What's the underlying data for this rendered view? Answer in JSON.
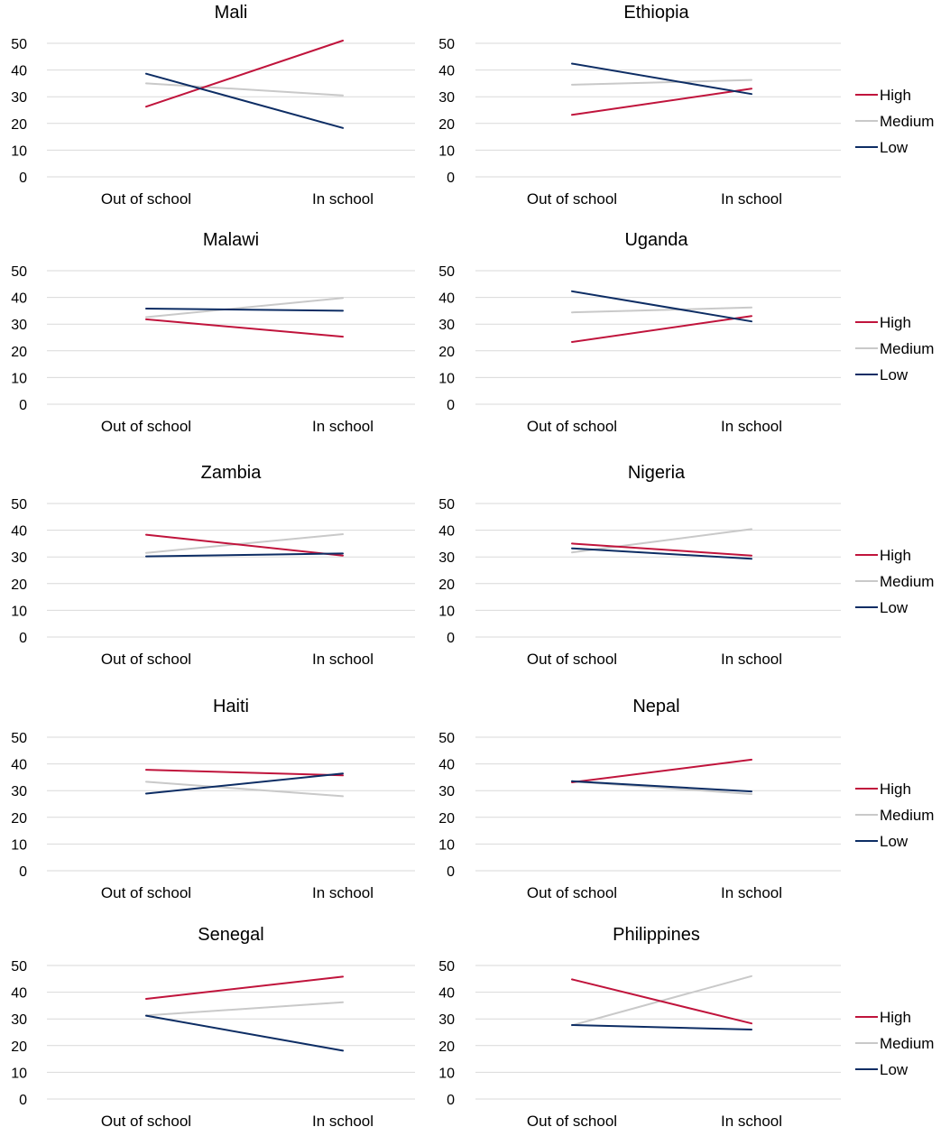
{
  "colors": {
    "High": "#c0143c",
    "Medium": "#c9c9c9",
    "Low": "#0d2d64"
  },
  "legend_labels": [
    "High",
    "Medium",
    "Low"
  ],
  "chart_data": [
    {
      "type": "line",
      "title": "Mali",
      "categories": [
        "Out of school",
        "In school"
      ],
      "ylim": [
        0,
        50
      ],
      "yticks": [
        0,
        10,
        20,
        30,
        40,
        50
      ],
      "series": [
        {
          "name": "High",
          "values": [
            26.3,
            51
          ]
        },
        {
          "name": "Medium",
          "values": [
            35,
            30.5
          ]
        },
        {
          "name": "Low",
          "values": [
            38.6,
            18.3
          ]
        }
      ]
    },
    {
      "type": "line",
      "title": "Ethiopia",
      "categories": [
        "Out of school",
        "In school"
      ],
      "ylim": [
        0,
        50
      ],
      "yticks": [
        0,
        10,
        20,
        30,
        40,
        50
      ],
      "series": [
        {
          "name": "High",
          "values": [
            23.2,
            33
          ]
        },
        {
          "name": "Medium",
          "values": [
            34.5,
            36.3
          ]
        },
        {
          "name": "Low",
          "values": [
            42.4,
            31
          ]
        }
      ]
    },
    {
      "type": "line",
      "title": "Malawi",
      "categories": [
        "Out of school",
        "In school"
      ],
      "ylim": [
        0,
        50
      ],
      "yticks": [
        0,
        10,
        20,
        30,
        40,
        50
      ],
      "series": [
        {
          "name": "High",
          "values": [
            31.8,
            25.3
          ]
        },
        {
          "name": "Medium",
          "values": [
            32.6,
            39.8
          ]
        },
        {
          "name": "Low",
          "values": [
            35.8,
            35
          ]
        }
      ]
    },
    {
      "type": "line",
      "title": "Uganda",
      "categories": [
        "Out of school",
        "In school"
      ],
      "ylim": [
        0,
        50
      ],
      "yticks": [
        0,
        10,
        20,
        30,
        40,
        50
      ],
      "series": [
        {
          "name": "High",
          "values": [
            23.3,
            33
          ]
        },
        {
          "name": "Medium",
          "values": [
            34.4,
            36.2
          ]
        },
        {
          "name": "Low",
          "values": [
            42.3,
            31
          ]
        }
      ]
    },
    {
      "type": "line",
      "title": "Zambia",
      "categories": [
        "Out of school",
        "In school"
      ],
      "ylim": [
        0,
        50
      ],
      "yticks": [
        0,
        10,
        20,
        30,
        40,
        50
      ],
      "series": [
        {
          "name": "High",
          "values": [
            38.3,
            30.5
          ]
        },
        {
          "name": "Medium",
          "values": [
            31.5,
            38.5
          ]
        },
        {
          "name": "Low",
          "values": [
            30.2,
            31.3
          ]
        }
      ]
    },
    {
      "type": "line",
      "title": "Nigeria",
      "categories": [
        "Out of school",
        "In school"
      ],
      "ylim": [
        0,
        50
      ],
      "yticks": [
        0,
        10,
        20,
        30,
        40,
        50
      ],
      "series": [
        {
          "name": "High",
          "values": [
            35,
            30.5
          ]
        },
        {
          "name": "Medium",
          "values": [
            31.7,
            40.4
          ]
        },
        {
          "name": "Low",
          "values": [
            33.2,
            29.3
          ]
        }
      ]
    },
    {
      "type": "line",
      "title": "Haiti",
      "categories": [
        "Out of school",
        "In school"
      ],
      "ylim": [
        0,
        50
      ],
      "yticks": [
        0,
        10,
        20,
        30,
        40,
        50
      ],
      "series": [
        {
          "name": "High",
          "values": [
            37.8,
            35.7
          ]
        },
        {
          "name": "Medium",
          "values": [
            33.3,
            27.9
          ]
        },
        {
          "name": "Low",
          "values": [
            28.9,
            36.4
          ]
        }
      ]
    },
    {
      "type": "line",
      "title": "Nepal",
      "categories": [
        "Out of school",
        "In school"
      ],
      "ylim": [
        0,
        50
      ],
      "yticks": [
        0,
        10,
        20,
        30,
        40,
        50
      ],
      "series": [
        {
          "name": "High",
          "values": [
            33.1,
            41.6
          ]
        },
        {
          "name": "Medium",
          "values": [
            33.4,
            28.7
          ]
        },
        {
          "name": "Low",
          "values": [
            33.5,
            29.7
          ]
        }
      ]
    },
    {
      "type": "line",
      "title": "Senegal",
      "categories": [
        "Out of school",
        "In school"
      ],
      "ylim": [
        0,
        50
      ],
      "yticks": [
        0,
        10,
        20,
        30,
        40,
        50
      ],
      "series": [
        {
          "name": "High",
          "values": [
            37.5,
            45.8
          ]
        },
        {
          "name": "Medium",
          "values": [
            31.3,
            36.2
          ]
        },
        {
          "name": "Low",
          "values": [
            31.2,
            18.1
          ]
        }
      ]
    },
    {
      "type": "line",
      "title": "Philippines",
      "categories": [
        "Out of school",
        "In school"
      ],
      "ylim": [
        0,
        50
      ],
      "yticks": [
        0,
        10,
        20,
        30,
        40,
        50
      ],
      "series": [
        {
          "name": "High",
          "values": [
            44.8,
            28.3
          ]
        },
        {
          "name": "Medium",
          "values": [
            27.6,
            46
          ]
        },
        {
          "name": "Low",
          "values": [
            27.7,
            26
          ]
        }
      ]
    }
  ]
}
